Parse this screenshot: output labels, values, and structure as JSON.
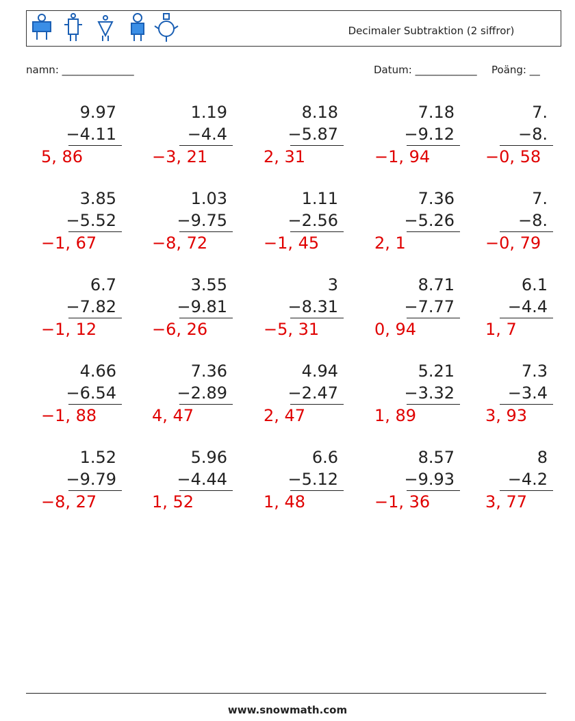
{
  "header": {
    "title": "Decimaler Subtraktion (2 siffror)"
  },
  "fields": {
    "name": "namn: ______________",
    "date": "Datum: ____________",
    "score": "Poäng: __"
  },
  "problems": [
    [
      {
        "top": "9.97",
        "bottom": "−4.11",
        "answer": "5, 86"
      },
      {
        "top": "1.19",
        "bottom": "−4.4",
        "answer": "−3, 21"
      },
      {
        "top": "8.18",
        "bottom": "−5.87",
        "answer": "2, 31"
      },
      {
        "top": "7.18",
        "bottom": "−9.12",
        "answer": "−1, 94"
      },
      {
        "top": "7.",
        "bottom": "−8.",
        "answer": "−0, 58"
      }
    ],
    [
      {
        "top": "3.85",
        "bottom": "−5.52",
        "answer": "−1, 67"
      },
      {
        "top": "1.03",
        "bottom": "−9.75",
        "answer": "−8, 72"
      },
      {
        "top": "1.11",
        "bottom": "−2.56",
        "answer": "−1, 45"
      },
      {
        "top": "7.36",
        "bottom": "−5.26",
        "answer": "2, 1"
      },
      {
        "top": "7.",
        "bottom": "−8.",
        "answer": "−0, 79"
      }
    ],
    [
      {
        "top": "6.7",
        "bottom": "−7.82",
        "answer": "−1, 12"
      },
      {
        "top": "3.55",
        "bottom": "−9.81",
        "answer": "−6, 26"
      },
      {
        "top": "3",
        "bottom": "−8.31",
        "answer": "−5, 31"
      },
      {
        "top": "8.71",
        "bottom": "−7.77",
        "answer": "0, 94"
      },
      {
        "top": "6.1",
        "bottom": "−4.4",
        "answer": "1, 7"
      }
    ],
    [
      {
        "top": "4.66",
        "bottom": "−6.54",
        "answer": "−1, 88"
      },
      {
        "top": "7.36",
        "bottom": "−2.89",
        "answer": "4, 47"
      },
      {
        "top": "4.94",
        "bottom": "−2.47",
        "answer": "2, 47"
      },
      {
        "top": "5.21",
        "bottom": "−3.32",
        "answer": "1, 89"
      },
      {
        "top": "7.3",
        "bottom": "−3.4",
        "answer": "3, 93"
      }
    ],
    [
      {
        "top": "1.52",
        "bottom": "−9.79",
        "answer": "−8, 27"
      },
      {
        "top": "5.96",
        "bottom": "−4.44",
        "answer": "1, 52"
      },
      {
        "top": "6.6",
        "bottom": "−5.12",
        "answer": "1, 48"
      },
      {
        "top": "8.57",
        "bottom": "−9.93",
        "answer": "−1, 36"
      },
      {
        "top": "8",
        "bottom": "−4.2",
        "answer": "3, 77"
      }
    ]
  ],
  "footer": {
    "url": "www.snowmath.com"
  }
}
